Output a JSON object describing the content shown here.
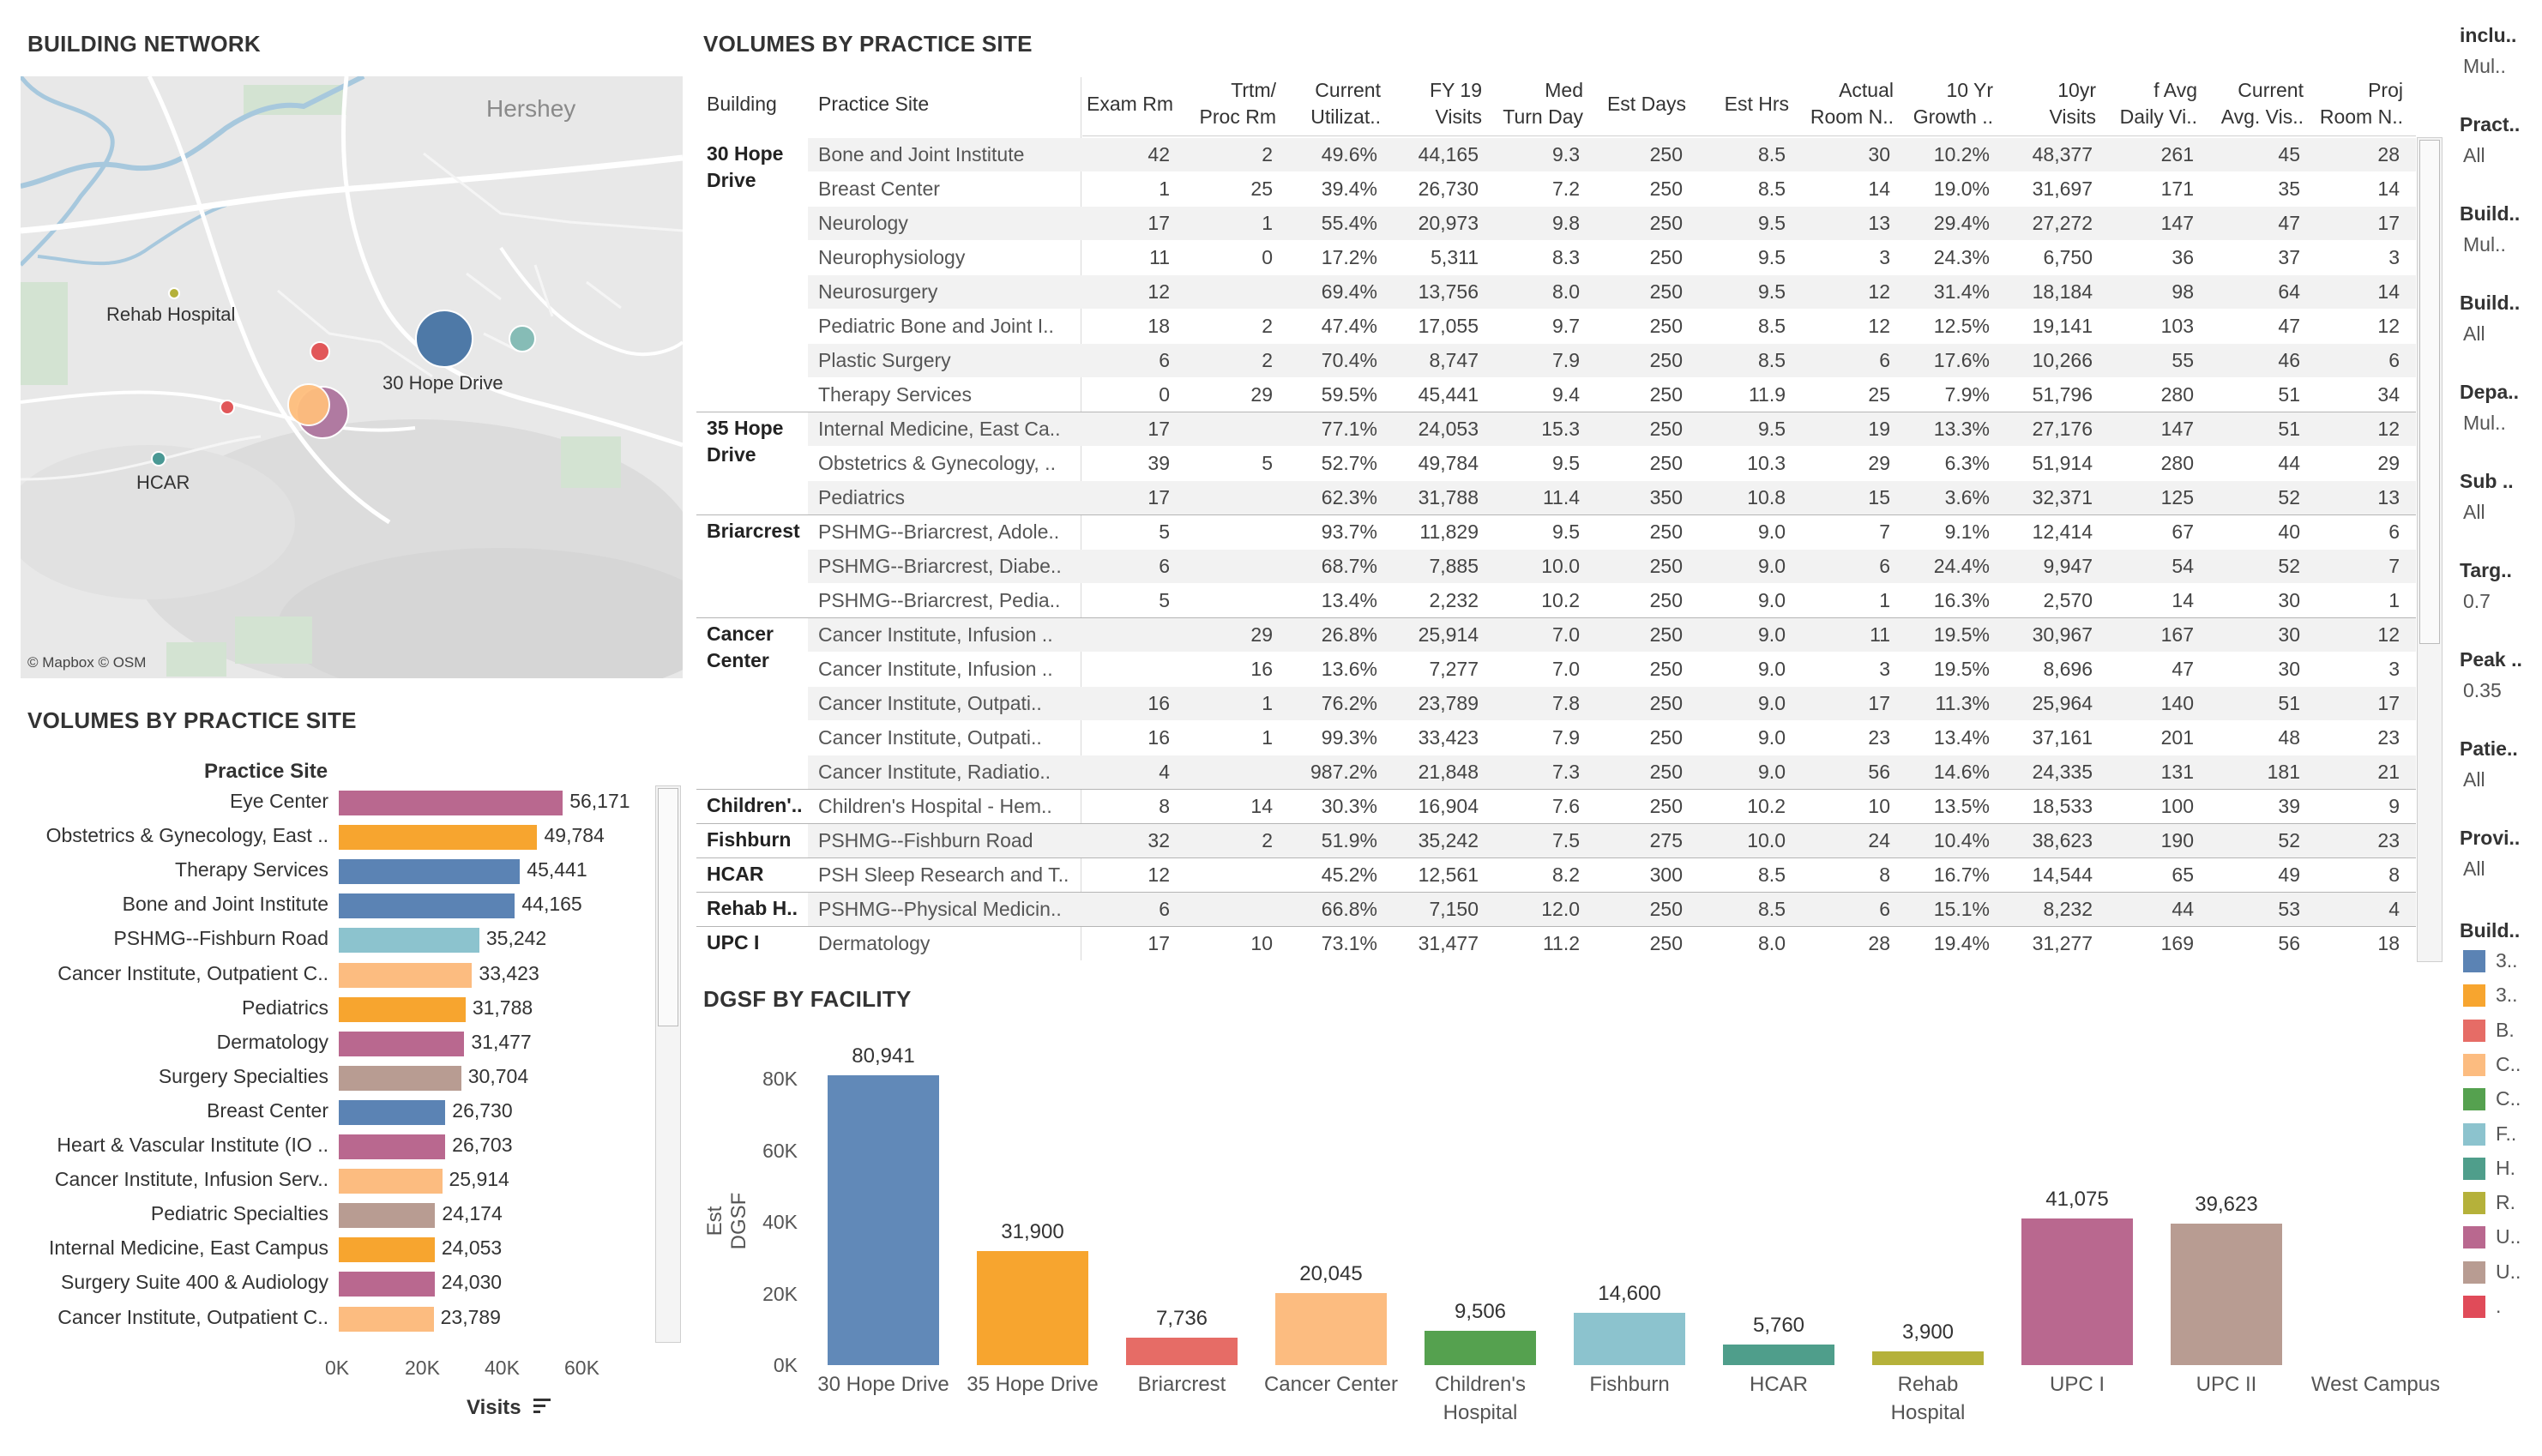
{
  "titles": {
    "map": "BUILDING NETWORK",
    "volumes_bar": "VOLUMES BY PRACTICE SITE",
    "volumes_table": "VOLUMES BY PRACTICE SITE",
    "dgsf": "DGSF BY FACILITY"
  },
  "map": {
    "town": "Hershey",
    "attribution": "© Mapbox © OSM",
    "labels": {
      "rehab": "Rehab Hospital",
      "hope30": "30 Hope Drive",
      "hcar": "HCAR"
    },
    "marker_colors": [
      "#4e79a7",
      "#f28e2b",
      "#e15759",
      "#ffbe7d",
      "#59a14f",
      "#8cd17d",
      "#b6992d",
      "#86bcb6",
      "#499894",
      "#b07aa1",
      "#d37295"
    ]
  },
  "bar_left": {
    "header": "Practice Site",
    "x_axis_label": "Visits",
    "ticks": [
      "0K",
      "20K",
      "40K",
      "60K"
    ],
    "rows": [
      {
        "label": "Eye Center",
        "value": "56,171",
        "color": "#b9688f"
      },
      {
        "label": "Obstetrics & Gynecology, East ..",
        "value": "49,784",
        "color": "#f7a52f"
      },
      {
        "label": "Therapy Services",
        "value": "45,441",
        "color": "#5b83b4"
      },
      {
        "label": "Bone and Joint Institute",
        "value": "44,165",
        "color": "#5b83b4"
      },
      {
        "label": "PSHMG--Fishburn Road",
        "value": "35,242",
        "color": "#8cc3ce"
      },
      {
        "label": "Cancer Institute, Outpatient C..",
        "value": "33,423",
        "color": "#fcbc80"
      },
      {
        "label": "Pediatrics",
        "value": "31,788",
        "color": "#f7a52f"
      },
      {
        "label": "Dermatology",
        "value": "31,477",
        "color": "#b9688f"
      },
      {
        "label": "Surgery Specialties",
        "value": "30,704",
        "color": "#b89c92"
      },
      {
        "label": "Breast Center",
        "value": "26,730",
        "color": "#5b83b4"
      },
      {
        "label": "Heart & Vascular Institute (IO ..",
        "value": "26,703",
        "color": "#b9688f"
      },
      {
        "label": "Cancer Institute, Infusion Serv..",
        "value": "25,914",
        "color": "#fcbc80"
      },
      {
        "label": "Pediatric Specialties",
        "value": "24,174",
        "color": "#b89c92"
      },
      {
        "label": "Internal Medicine, East Campus",
        "value": "24,053",
        "color": "#f7a52f"
      },
      {
        "label": "Surgery Suite 400 & Audiology",
        "value": "24,030",
        "color": "#b9688f"
      },
      {
        "label": "Cancer Institute, Outpatient C..",
        "value": "23,789",
        "color": "#fcbc80"
      }
    ]
  },
  "table": {
    "headers": [
      [
        "Building"
      ],
      [
        "Practice Site"
      ],
      [
        "Exam Rm"
      ],
      [
        "Trtm/",
        "Proc Rm"
      ],
      [
        "Current",
        "Utilizat.."
      ],
      [
        "FY 19",
        "Visits"
      ],
      [
        "Med",
        "Turn Day"
      ],
      [
        "Est Days"
      ],
      [
        "Est Hrs"
      ],
      [
        "Actual",
        "Room N.."
      ],
      [
        "10 Yr",
        "Growth .."
      ],
      [
        "10yr",
        "Visits"
      ],
      [
        "f Avg",
        "Daily Vi.."
      ],
      [
        "Current",
        "Avg. Vis.."
      ],
      [
        "Proj",
        "Room N.."
      ]
    ],
    "groups": [
      {
        "building": [
          "30 Hope",
          "Drive"
        ],
        "rows": [
          [
            "Bone and Joint Institute",
            "42",
            "2",
            "49.6%",
            "44,165",
            "9.3",
            "250",
            "8.5",
            "30",
            "10.2%",
            "48,377",
            "261",
            "45",
            "28"
          ],
          [
            "Breast Center",
            "1",
            "25",
            "39.4%",
            "26,730",
            "7.2",
            "250",
            "8.5",
            "14",
            "19.0%",
            "31,697",
            "171",
            "35",
            "14"
          ],
          [
            "Neurology",
            "17",
            "1",
            "55.4%",
            "20,973",
            "9.8",
            "250",
            "9.5",
            "13",
            "29.4%",
            "27,272",
            "147",
            "47",
            "17"
          ],
          [
            "Neurophysiology",
            "11",
            "0",
            "17.2%",
            "5,311",
            "8.3",
            "250",
            "9.5",
            "3",
            "24.3%",
            "6,750",
            "36",
            "37",
            "3"
          ],
          [
            "Neurosurgery",
            "12",
            "",
            "69.4%",
            "13,756",
            "8.0",
            "250",
            "9.5",
            "12",
            "31.4%",
            "18,184",
            "98",
            "64",
            "14"
          ],
          [
            "Pediatric Bone and Joint I..",
            "18",
            "2",
            "47.4%",
            "17,055",
            "9.7",
            "250",
            "8.5",
            "12",
            "12.5%",
            "19,141",
            "103",
            "47",
            "12"
          ],
          [
            "Plastic Surgery",
            "6",
            "2",
            "70.4%",
            "8,747",
            "7.9",
            "250",
            "8.5",
            "6",
            "17.6%",
            "10,266",
            "55",
            "46",
            "6"
          ],
          [
            "Therapy Services",
            "0",
            "29",
            "59.5%",
            "45,441",
            "9.4",
            "250",
            "11.9",
            "25",
            "7.9%",
            "51,796",
            "280",
            "51",
            "34"
          ]
        ]
      },
      {
        "building": [
          "35 Hope",
          "Drive"
        ],
        "rows": [
          [
            "Internal Medicine, East Ca..",
            "17",
            "",
            "77.1%",
            "24,053",
            "15.3",
            "250",
            "9.5",
            "19",
            "13.3%",
            "27,176",
            "147",
            "51",
            "12"
          ],
          [
            "Obstetrics & Gynecology, ..",
            "39",
            "5",
            "52.7%",
            "49,784",
            "9.5",
            "250",
            "10.3",
            "29",
            "6.3%",
            "51,914",
            "280",
            "44",
            "29"
          ],
          [
            "Pediatrics",
            "17",
            "",
            "62.3%",
            "31,788",
            "11.4",
            "350",
            "10.8",
            "15",
            "3.6%",
            "32,371",
            "125",
            "52",
            "13"
          ]
        ]
      },
      {
        "building": [
          "Briarcrest"
        ],
        "rows": [
          [
            "PSHMG--Briarcrest, Adole..",
            "5",
            "",
            "93.7%",
            "11,829",
            "9.5",
            "250",
            "9.0",
            "7",
            "9.1%",
            "12,414",
            "67",
            "40",
            "6"
          ],
          [
            "PSHMG--Briarcrest, Diabe..",
            "6",
            "",
            "68.7%",
            "7,885",
            "10.0",
            "250",
            "9.0",
            "6",
            "24.4%",
            "9,947",
            "54",
            "52",
            "7"
          ],
          [
            "PSHMG--Briarcrest, Pedia..",
            "5",
            "",
            "13.4%",
            "2,232",
            "10.2",
            "250",
            "9.0",
            "1",
            "16.3%",
            "2,570",
            "14",
            "30",
            "1"
          ]
        ]
      },
      {
        "building": [
          "Cancer",
          "Center"
        ],
        "rows": [
          [
            "Cancer Institute, Infusion ..",
            "",
            "29",
            "26.8%",
            "25,914",
            "7.0",
            "250",
            "9.0",
            "11",
            "19.5%",
            "30,967",
            "167",
            "30",
            "12"
          ],
          [
            "Cancer Institute, Infusion ..",
            "",
            "16",
            "13.6%",
            "7,277",
            "7.0",
            "250",
            "9.0",
            "3",
            "19.5%",
            "8,696",
            "47",
            "30",
            "3"
          ],
          [
            "Cancer Institute, Outpati..",
            "16",
            "1",
            "76.2%",
            "23,789",
            "7.8",
            "250",
            "9.0",
            "17",
            "11.3%",
            "25,964",
            "140",
            "51",
            "17"
          ],
          [
            "Cancer Institute, Outpati..",
            "16",
            "1",
            "99.3%",
            "33,423",
            "7.9",
            "250",
            "9.0",
            "23",
            "13.4%",
            "37,161",
            "201",
            "48",
            "23"
          ],
          [
            "Cancer Institute, Radiatio..",
            "4",
            "",
            "987.2%",
            "21,848",
            "7.3",
            "250",
            "9.0",
            "56",
            "14.6%",
            "24,335",
            "131",
            "181",
            "21"
          ]
        ]
      },
      {
        "building": [
          "Children'.."
        ],
        "rows": [
          [
            "Children's Hospital - Hem..",
            "8",
            "14",
            "30.3%",
            "16,904",
            "7.6",
            "250",
            "10.2",
            "10",
            "13.5%",
            "18,533",
            "100",
            "39",
            "9"
          ]
        ]
      },
      {
        "building": [
          "Fishburn"
        ],
        "rows": [
          [
            "PSHMG--Fishburn Road",
            "32",
            "2",
            "51.9%",
            "35,242",
            "7.5",
            "275",
            "10.0",
            "24",
            "10.4%",
            "38,623",
            "190",
            "52",
            "23"
          ]
        ]
      },
      {
        "building": [
          "HCAR"
        ],
        "rows": [
          [
            "PSH Sleep Research and T..",
            "12",
            "",
            "45.2%",
            "12,561",
            "8.2",
            "300",
            "8.5",
            "8",
            "16.7%",
            "14,544",
            "65",
            "49",
            "8"
          ]
        ]
      },
      {
        "building": [
          "Rehab H.."
        ],
        "rows": [
          [
            "PSHMG--Physical Medicin..",
            "6",
            "",
            "66.8%",
            "7,150",
            "12.0",
            "250",
            "8.5",
            "6",
            "15.1%",
            "8,232",
            "44",
            "53",
            "4"
          ]
        ]
      },
      {
        "building": [
          "UPC I"
        ],
        "rows": [
          [
            "Dermatology",
            "17",
            "10",
            "73.1%",
            "31,477",
            "11.2",
            "250",
            "8.0",
            "28",
            "19.4%",
            "31,277",
            "169",
            "56",
            "18"
          ]
        ]
      }
    ]
  },
  "filters": [
    {
      "label": "inclu..",
      "value": "Mul.."
    },
    {
      "label": "Pract..",
      "value": "All"
    },
    {
      "label": "Build..",
      "value": "Mul.."
    },
    {
      "label": "Build..",
      "value": "All"
    },
    {
      "label": "Depa..",
      "value": "Mul.."
    },
    {
      "label": "Sub ..",
      "value": "All"
    },
    {
      "label": "Targ..",
      "value": "0.7"
    },
    {
      "label": "Peak ..",
      "value": "0.35"
    },
    {
      "label": "Patie..",
      "value": "All"
    },
    {
      "label": "Provi..",
      "value": "All"
    }
  ],
  "legend": {
    "title": "Build..",
    "items": [
      {
        "label": "3..",
        "color": "#5b83b4"
      },
      {
        "label": "3..",
        "color": "#f7a52f"
      },
      {
        "label": "B.",
        "color": "#e66c66"
      },
      {
        "label": "C..",
        "color": "#fcbc80"
      },
      {
        "label": "C..",
        "color": "#55a14f"
      },
      {
        "label": "F..",
        "color": "#8cc3ce"
      },
      {
        "label": "H.",
        "color": "#4f9e8b"
      },
      {
        "label": "R.",
        "color": "#b5b13a"
      },
      {
        "label": "U..",
        "color": "#b9688f"
      },
      {
        "label": "U..",
        "color": "#b89c92"
      },
      {
        "label": ".",
        "color": "#e04b59"
      }
    ]
  },
  "chart_data": {
    "type": "bar",
    "title": "DGSF BY FACILITY",
    "xlabel": "",
    "ylabel": "Est DGSF",
    "ylim": [
      0,
      80000
    ],
    "yticks": [
      "0K",
      "20K",
      "40K",
      "60K",
      "80K"
    ],
    "categories": [
      [
        "30 Hope Drive"
      ],
      [
        "35 Hope Drive"
      ],
      [
        "Briarcrest"
      ],
      [
        "Cancer Center"
      ],
      [
        "Children's",
        "Hospital"
      ],
      [
        "Fishburn"
      ],
      [
        "HCAR"
      ],
      [
        "Rehab",
        "Hospital"
      ],
      [
        "UPC I"
      ],
      [
        "UPC II"
      ],
      [
        "West Campus"
      ]
    ],
    "values": [
      80941,
      31900,
      7736,
      20045,
      9506,
      14600,
      5760,
      3900,
      41075,
      39623,
      null
    ],
    "labels": [
      "80,941",
      "31,900",
      "7,736",
      "20,045",
      "9,506",
      "14,600",
      "5,760",
      "3,900",
      "41,075",
      "39,623",
      ""
    ],
    "colors": [
      "#6189b8",
      "#f7a52f",
      "#e66c66",
      "#fcbc80",
      "#55a14f",
      "#8cc3ce",
      "#4f9e8b",
      "#b5b13a",
      "#b9688f",
      "#b89c92",
      "#e04b59"
    ],
    "grid": false
  }
}
